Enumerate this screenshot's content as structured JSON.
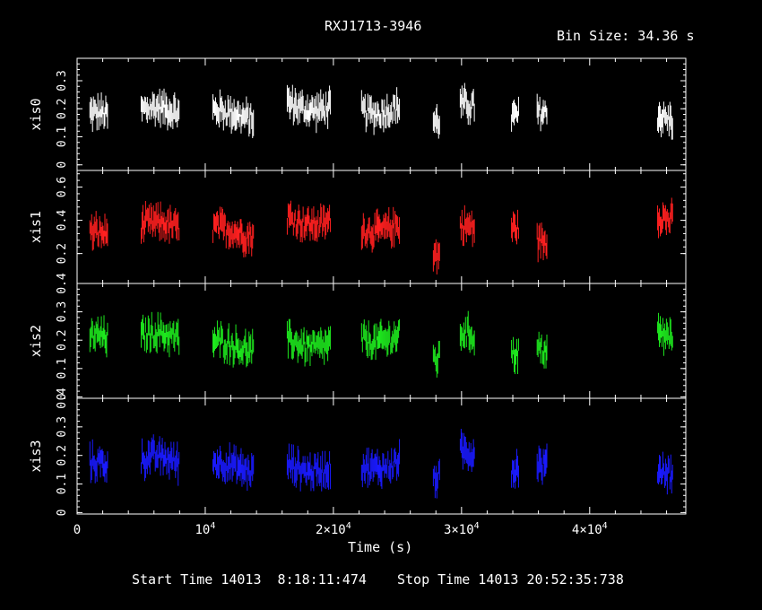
{
  "header": {
    "title": "RXJ1713-3946",
    "bin_size": "Bin Size: 34.36 s"
  },
  "footer": {
    "start_time": "Start Time 14013  8:18:11:474",
    "stop_time": "Stop Time 14013 20:52:35:738"
  },
  "chart_data": {
    "type": "line",
    "title": "RXJ1713-3946",
    "xlabel": "Time (s)",
    "xlim": [
      0,
      47500
    ],
    "x_ticks": [
      {
        "value": 0,
        "label": "0"
      },
      {
        "value": 10000,
        "label": "10^4"
      },
      {
        "value": 20000,
        "label": "2×10^4"
      },
      {
        "value": 30000,
        "label": "3×10^4"
      },
      {
        "value": 40000,
        "label": "4×10^4"
      }
    ],
    "observation_segments": [
      [
        1000,
        2400
      ],
      [
        5000,
        8000
      ],
      [
        10600,
        13800
      ],
      [
        16400,
        19800
      ],
      [
        22200,
        25200
      ],
      [
        27800,
        28300
      ],
      [
        29900,
        31000
      ],
      [
        33900,
        34500
      ],
      [
        35900,
        36700
      ],
      [
        45300,
        46500
      ]
    ],
    "panels": [
      {
        "name": "xis0",
        "color": "#ffffff",
        "ylim": [
          -0.02,
          0.38
        ],
        "y_ticks": [
          "0",
          "0.1",
          "0.2",
          "0.3"
        ],
        "y_tick_values": [
          0,
          0.1,
          0.2,
          0.3
        ],
        "segment_means": [
          0.17,
          0.19,
          0.18,
          0.21,
          0.2,
          0.17,
          0.2,
          0.16,
          0.2,
          0.17
        ]
      },
      {
        "name": "xis1",
        "color": "#ff2020",
        "ylim": [
          0.02,
          0.7
        ],
        "y_ticks": [
          "0.2",
          "0.4",
          "0.6"
        ],
        "y_tick_values": [
          0.2,
          0.4,
          0.6
        ],
        "segment_means": [
          0.3,
          0.36,
          0.33,
          0.4,
          0.36,
          0.22,
          0.34,
          0.33,
          0.3,
          0.42
        ]
      },
      {
        "name": "xis2",
        "color": "#1ee81e",
        "ylim": [
          -0.005,
          0.4
        ],
        "y_ticks": [
          "0",
          "0.1",
          "0.2",
          "0.3",
          "0.4"
        ],
        "y_tick_values": [
          0,
          0.1,
          0.2,
          0.3,
          0.4
        ],
        "segment_means": [
          0.2,
          0.21,
          0.18,
          0.19,
          0.21,
          0.15,
          0.21,
          0.14,
          0.18,
          0.22
        ]
      },
      {
        "name": "xis3",
        "color": "#1a1aff",
        "ylim": [
          -0.005,
          0.4
        ],
        "y_ticks": [
          "0",
          "0.1",
          "0.2",
          "0.3",
          "0.4"
        ],
        "y_tick_values": [
          0,
          0.1,
          0.2,
          0.3,
          0.4
        ],
        "segment_means": [
          0.16,
          0.18,
          0.16,
          0.16,
          0.17,
          0.14,
          0.2,
          0.14,
          0.18,
          0.15
        ]
      }
    ]
  }
}
